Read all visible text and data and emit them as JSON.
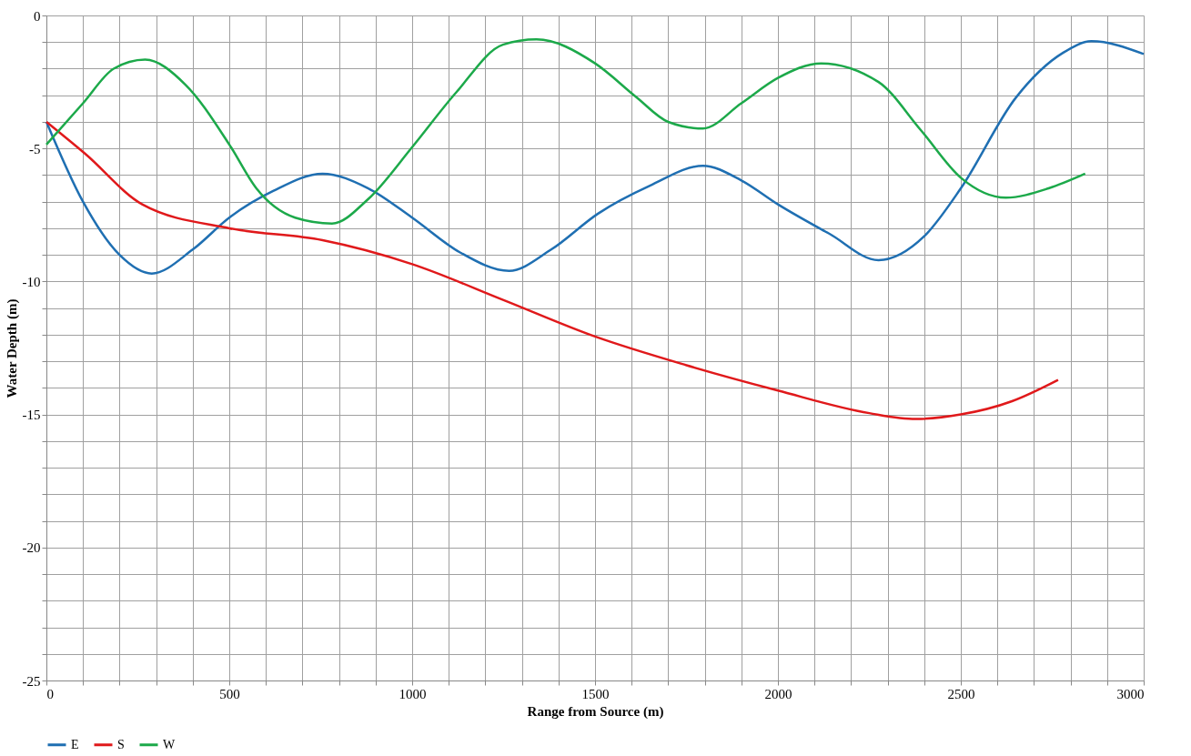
{
  "chart_data": {
    "type": "line",
    "xlabel": "Range from Source (m)",
    "ylabel": "Water Depth (m)",
    "xlim": [
      0,
      3000
    ],
    "ylim": [
      -25,
      0
    ],
    "xticks": [
      0,
      {
        "value": 100,
        "label": null
      },
      {
        "value": 200,
        "label": null
      },
      {
        "value": 300,
        "label": null
      },
      {
        "value": 400,
        "label": null
      },
      500,
      {
        "value": 600,
        "label": null
      },
      {
        "value": 700,
        "label": null
      },
      {
        "value": 800,
        "label": null
      },
      {
        "value": 900,
        "label": null
      },
      1000,
      {
        "value": 1100,
        "label": null
      },
      {
        "value": 1200,
        "label": null
      },
      {
        "value": 1300,
        "label": null
      },
      {
        "value": 1400,
        "label": null
      },
      1500,
      {
        "value": 1600,
        "label": null
      },
      {
        "value": 1700,
        "label": null
      },
      {
        "value": 1800,
        "label": null
      },
      {
        "value": 1900,
        "label": null
      },
      2000,
      {
        "value": 2100,
        "label": null
      },
      {
        "value": 2200,
        "label": null
      },
      {
        "value": 2300,
        "label": null
      },
      {
        "value": 2400,
        "label": null
      },
      2500,
      {
        "value": 2600,
        "label": null
      },
      {
        "value": 2700,
        "label": null
      },
      {
        "value": 2800,
        "label": null
      },
      {
        "value": 2900,
        "label": null
      },
      3000
    ],
    "yticks": [
      -25,
      {
        "value": -24,
        "label": null
      },
      {
        "value": -23,
        "label": null
      },
      {
        "value": -22,
        "label": null
      },
      {
        "value": -21,
        "label": null
      },
      -20,
      {
        "value": -19,
        "label": null
      },
      {
        "value": -18,
        "label": null
      },
      {
        "value": -17,
        "label": null
      },
      {
        "value": -16,
        "label": null
      },
      -15,
      {
        "value": -14,
        "label": null
      },
      {
        "value": -13,
        "label": null
      },
      {
        "value": -12,
        "label": null
      },
      {
        "value": -11,
        "label": null
      },
      -10,
      {
        "value": -9,
        "label": null
      },
      {
        "value": -8,
        "label": null
      },
      {
        "value": -7,
        "label": null
      },
      {
        "value": -6,
        "label": null
      },
      -5,
      {
        "value": -4,
        "label": null
      },
      {
        "value": -3,
        "label": null
      },
      {
        "value": -2,
        "label": null
      },
      {
        "value": -1,
        "label": null
      },
      0
    ],
    "grid": true,
    "legend": "bottom",
    "marker": "none",
    "line_style": "solid",
    "series": [
      {
        "name": "E",
        "color": "#1f6fb2",
        "x": [
          0,
          100,
          200,
          288,
          400,
          500,
          620,
          755,
          880,
          1000,
          1130,
          1265,
          1380,
          1508,
          1650,
          1795,
          1900,
          2000,
          2140,
          2275,
          2400,
          2500,
          2650,
          2780,
          2857,
          3000
        ],
        "values": [
          -4.0,
          -7.0,
          -9.0,
          -9.7,
          -8.8,
          -7.6,
          -6.6,
          -5.95,
          -6.5,
          -7.6,
          -8.9,
          -9.6,
          -8.8,
          -7.45,
          -6.4,
          -5.65,
          -6.2,
          -7.1,
          -8.2,
          -9.2,
          -8.3,
          -6.5,
          -3.1,
          -1.4,
          -0.97,
          -1.45
        ]
      },
      {
        "name": "S",
        "color": "#e0191b",
        "x": [
          0,
          106,
          262,
          500,
          755,
          1000,
          1250,
          1500,
          1750,
          2000,
          2250,
          2377,
          2500,
          2640,
          2766
        ],
        "values": [
          -4.0,
          -5.2,
          -7.1,
          -8.0,
          -8.45,
          -9.35,
          -10.7,
          -12.07,
          -13.15,
          -14.1,
          -14.95,
          -15.17,
          -15.0,
          -14.5,
          -13.7
        ]
      },
      {
        "name": "W",
        "color": "#1ca94a",
        "x": [
          0,
          100,
          184,
          270,
          380,
          500,
          574,
          680,
          781,
          880,
          1000,
          1120,
          1248,
          1340,
          1500,
          1612,
          1700,
          1795,
          1900,
          2000,
          2118,
          2275,
          2390,
          2500,
          2623,
          2740,
          2840
        ],
        "values": [
          -4.85,
          -3.3,
          -2.0,
          -1.66,
          -2.6,
          -4.85,
          -6.5,
          -7.6,
          -7.82,
          -6.9,
          -4.95,
          -2.9,
          -1.1,
          -0.9,
          -1.8,
          -3.06,
          -4.0,
          -4.25,
          -3.3,
          -2.35,
          -1.8,
          -2.5,
          -4.3,
          -6.1,
          -6.85,
          -6.5,
          -5.95
        ]
      }
    ]
  }
}
